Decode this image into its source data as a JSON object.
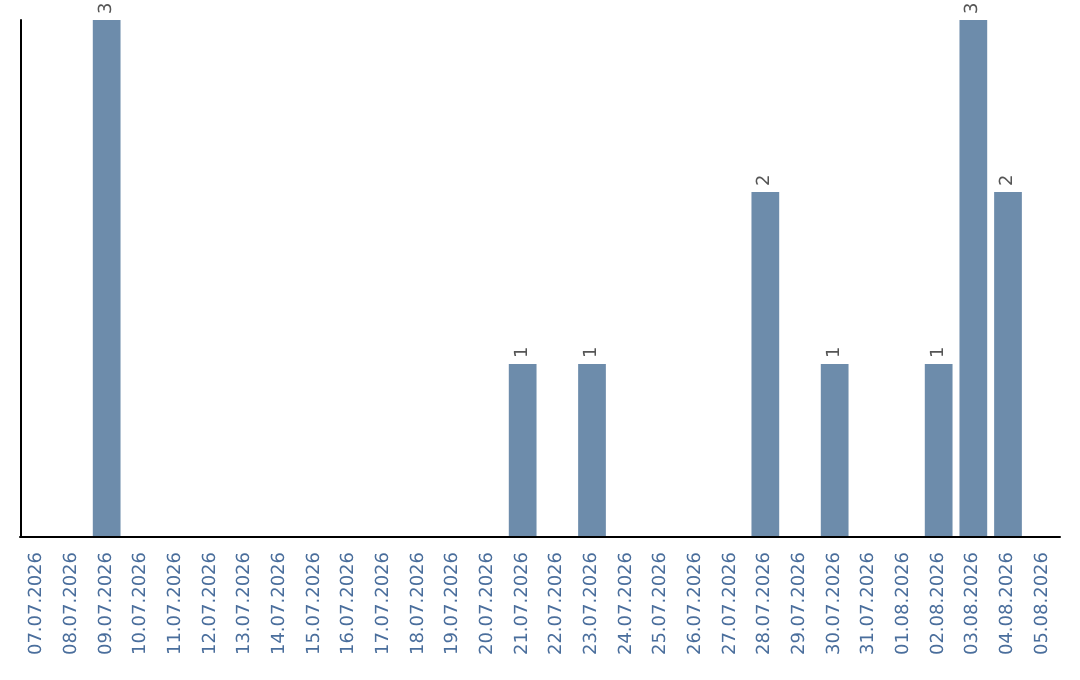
{
  "chart_data": {
    "type": "bar",
    "categories": [
      "07.07.2026",
      "08.07.2026",
      "09.07.2026",
      "10.07.2026",
      "11.07.2026",
      "12.07.2026",
      "13.07.2026",
      "14.07.2026",
      "15.07.2026",
      "16.07.2026",
      "17.07.2026",
      "18.07.2026",
      "19.07.2026",
      "20.07.2026",
      "21.07.2026",
      "22.07.2026",
      "23.07.2026",
      "24.07.2026",
      "25.07.2026",
      "26.07.2026",
      "27.07.2026",
      "28.07.2026",
      "29.07.2026",
      "30.07.2026",
      "31.07.2026",
      "01.08.2026",
      "02.08.2026",
      "03.08.2026",
      "04.08.2026",
      "05.08.2026"
    ],
    "values": [
      0,
      0,
      3,
      0,
      0,
      0,
      0,
      0,
      0,
      0,
      0,
      0,
      0,
      0,
      1,
      0,
      1,
      0,
      0,
      0,
      0,
      2,
      0,
      1,
      0,
      0,
      1,
      3,
      2,
      0
    ],
    "value_labels": [
      null,
      null,
      "3",
      null,
      null,
      null,
      null,
      null,
      null,
      null,
      null,
      null,
      null,
      null,
      "1",
      null,
      "1",
      null,
      null,
      null,
      null,
      "2",
      null,
      "1",
      null,
      null,
      "1",
      "3",
      "2",
      null
    ],
    "color": "#6d8cab",
    "grid": false,
    "tick_labels": "x"
  }
}
